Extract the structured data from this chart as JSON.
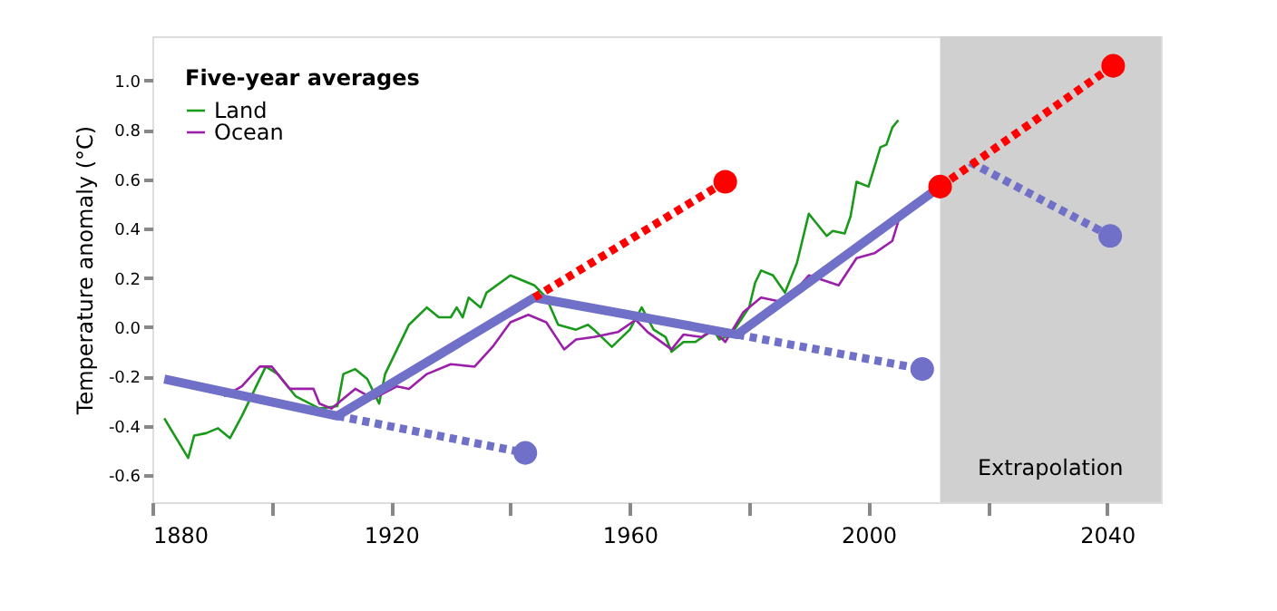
{
  "chart_data": {
    "type": "line",
    "ylabel": "Temperature anomaly (°C)",
    "legend_title": "Five-year averages",
    "legend": "top left",
    "grid": false,
    "xlim": [
      1880,
      2049
    ],
    "xticks": [
      1880,
      {
        "value": 1900,
        "label": null
      },
      1920,
      {
        "value": 1940,
        "label": null
      },
      1960,
      {
        "value": 1980,
        "label": null
      },
      2000,
      {
        "value": 2020,
        "label": null
      },
      2040
    ],
    "ylim": [
      -0.71,
      1.18
    ],
    "yticks": [
      -0.6,
      -0.4,
      -0.2,
      {
        "value": 0,
        "label": "0.0"
      },
      0.2,
      0.4,
      0.6,
      0.8,
      {
        "value": 1,
        "label": "1.0"
      }
    ],
    "bands": [
      {
        "axis": "x",
        "from": 2012,
        "to": 2049,
        "label": "Extrapolation",
        "color": "#d0d0d0"
      }
    ],
    "series": [
      {
        "name": "Land",
        "type": "line",
        "color": "#1a9a1a",
        "line_style": "solid",
        "x": [
          1882,
          1886,
          1887,
          1889,
          1891,
          1893,
          1895,
          1899,
          1901,
          1904,
          1908,
          1911,
          1912,
          1914,
          1916,
          1918,
          1919,
          1921,
          1923,
          1926,
          1928,
          1930,
          1931,
          1932,
          1933,
          1935,
          1936,
          1940,
          1944,
          1946,
          1948,
          1951,
          1953,
          1954,
          1957,
          1960,
          1962,
          1964,
          1966,
          1967,
          1969,
          1971,
          1974,
          1975,
          1977,
          1980,
          1981,
          1982,
          1984,
          1986,
          1988,
          1990,
          1991,
          1993,
          1994,
          1996,
          1997,
          1998,
          2000,
          2002,
          2003,
          2004,
          2005
        ],
        "values": [
          -0.37,
          -0.53,
          -0.44,
          -0.43,
          -0.41,
          -0.45,
          -0.36,
          -0.16,
          -0.19,
          -0.28,
          -0.33,
          -0.32,
          -0.19,
          -0.17,
          -0.21,
          -0.31,
          -0.19,
          -0.09,
          0.01,
          0.08,
          0.04,
          0.04,
          0.08,
          0.04,
          0.12,
          0.08,
          0.14,
          0.21,
          0.17,
          0.12,
          0.01,
          -0.01,
          0.01,
          -0.01,
          -0.08,
          -0.01,
          0.08,
          -0.01,
          -0.04,
          -0.1,
          -0.06,
          -0.06,
          -0.01,
          -0.05,
          -0.03,
          0.08,
          0.18,
          0.23,
          0.21,
          0.14,
          0.26,
          0.46,
          0.43,
          0.37,
          0.39,
          0.38,
          0.45,
          0.59,
          0.57,
          0.73,
          0.74,
          0.81,
          0.84
        ]
      },
      {
        "name": "Ocean",
        "type": "line",
        "color": "#9b1fa8",
        "line_style": "solid",
        "x": [
          1892,
          1895,
          1898,
          1900,
          1903,
          1907,
          1908,
          1910,
          1914,
          1917,
          1921,
          1923,
          1926,
          1930,
          1934,
          1937,
          1940,
          1943,
          1946,
          1949,
          1951,
          1954,
          1958,
          1961,
          1963,
          1967,
          1969,
          1972,
          1974,
          1976,
          1979,
          1982,
          1986,
          1990,
          1995,
          1998,
          2001,
          2004,
          2005
        ],
        "values": [
          -0.28,
          -0.24,
          -0.16,
          -0.16,
          -0.25,
          -0.25,
          -0.31,
          -0.33,
          -0.25,
          -0.29,
          -0.24,
          -0.25,
          -0.19,
          -0.15,
          -0.16,
          -0.08,
          0.02,
          0.05,
          0.02,
          -0.09,
          -0.05,
          -0.04,
          -0.02,
          0.03,
          -0.02,
          -0.09,
          -0.03,
          -0.04,
          -0.01,
          -0.06,
          0.06,
          0.12,
          0.1,
          0.21,
          0.17,
          0.28,
          0.3,
          0.35,
          0.43
        ]
      },
      {
        "type": "line",
        "color": "#7070c8",
        "line_style": "solid",
        "x": [
          1882,
          1911,
          1944,
          1978,
          2012
        ],
        "values": [
          -0.21,
          -0.36,
          0.12,
          -0.03,
          0.57
        ]
      },
      {
        "type": "line",
        "color": "#7070c8",
        "line_style": "dotted",
        "x": [
          1911,
          1942.5
        ],
        "values": [
          -0.36,
          -0.51
        ]
      },
      {
        "type": "line",
        "color": "#7070c8",
        "line_style": "dotted",
        "x": [
          1978,
          2009
        ],
        "values": [
          -0.03,
          -0.17
        ]
      },
      {
        "type": "line",
        "color": "#7070c8",
        "line_style": "dotted",
        "x": [
          2017,
          2040.5
        ],
        "values": [
          0.67,
          0.37
        ]
      },
      {
        "type": "line",
        "color": "#ff0000",
        "line_style": "dotted",
        "x": [
          1944,
          1976
        ],
        "values": [
          0.12,
          0.59
        ]
      },
      {
        "type": "line",
        "color": "#ff0000",
        "line_style": "dotted",
        "x": [
          2012,
          2041
        ],
        "values": [
          0.57,
          1.06
        ]
      },
      {
        "type": "scatter",
        "color": "#7070c8",
        "marker": "circle",
        "x": [
          1942.5,
          2009,
          2040.5
        ],
        "values": [
          -0.51,
          -0.17,
          0.37
        ]
      },
      {
        "type": "scatter",
        "color": "#ff0000",
        "marker": "circle",
        "x": [
          1976,
          2012,
          2041
        ],
        "values": [
          0.59,
          0.57,
          1.06
        ]
      }
    ]
  }
}
